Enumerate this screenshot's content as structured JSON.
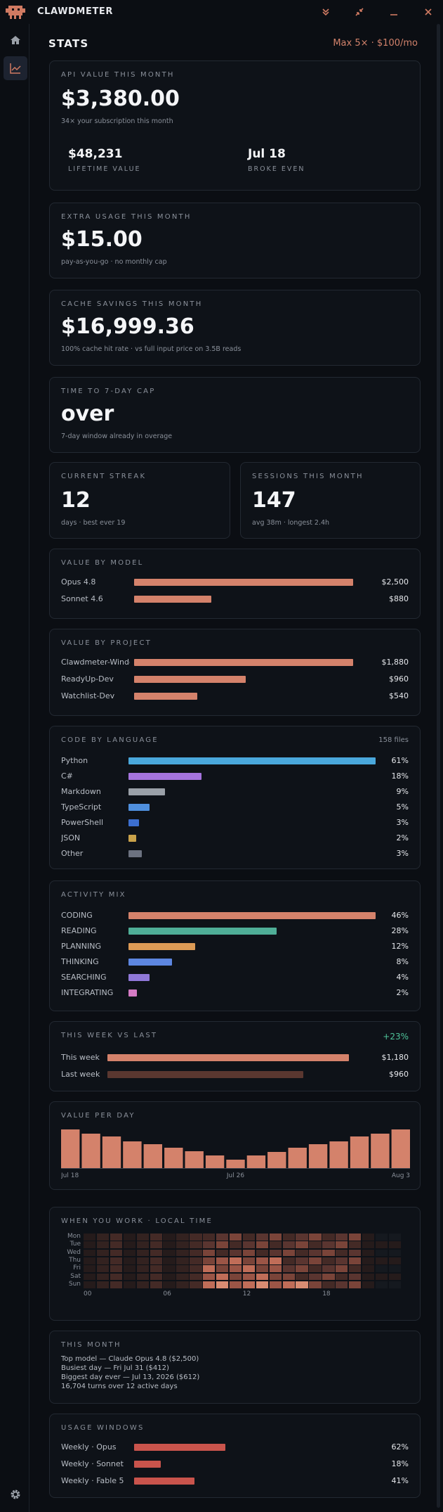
{
  "app": {
    "title": "CLAWDMETER"
  },
  "header": {
    "title": "STATS",
    "plan": "Max 5× · $100/mo"
  },
  "api_value": {
    "label": "API VALUE THIS MONTH",
    "value": "$3,380.00",
    "sub": "34× your subscription this month",
    "lifetime": {
      "value": "$48,231",
      "label": "LIFETIME VALUE"
    },
    "broke_even": {
      "value": "Jul 18",
      "label": "BROKE EVEN"
    }
  },
  "extra_usage": {
    "label": "EXTRA USAGE THIS MONTH",
    "value": "$15.00",
    "sub": "pay-as-you-go · no monthly cap"
  },
  "cache": {
    "label": "CACHE SAVINGS THIS MONTH",
    "value": "$16,999.36",
    "sub": "100% cache hit rate · vs full input price on 3.5B reads"
  },
  "cap": {
    "label": "TIME TO 7-DAY CAP",
    "value": "over",
    "sub": "7-day window already in overage"
  },
  "streak": {
    "label": "CURRENT STREAK",
    "value": "12",
    "sub": "days · best ever 19"
  },
  "sessions": {
    "label": "SESSIONS THIS MONTH",
    "value": "147",
    "sub": "avg 38m · longest 2.4h"
  },
  "by_model": {
    "label": "VALUE BY MODEL",
    "items": [
      {
        "name": "Opus 4.8",
        "value": "$2,500",
        "frac": 1.0
      },
      {
        "name": "Sonnet 4.6",
        "value": "$880",
        "frac": 0.352
      }
    ]
  },
  "by_project": {
    "label": "VALUE BY PROJECT",
    "items": [
      {
        "name": "Clawdmeter-Windows",
        "value": "$1,880",
        "frac": 1.0
      },
      {
        "name": "ReadyUp-Dev",
        "value": "$960",
        "frac": 0.51
      },
      {
        "name": "Watchlist-Dev",
        "value": "$540",
        "frac": 0.287
      }
    ]
  },
  "languages": {
    "label": "CODE BY LANGUAGE",
    "files": "158 files",
    "items": [
      {
        "name": "Python",
        "pct": "61%",
        "frac": 1.0,
        "color": "#4aa8dc"
      },
      {
        "name": "C#",
        "pct": "18%",
        "frac": 0.295,
        "color": "#a574dd"
      },
      {
        "name": "Markdown",
        "pct": "9%",
        "frac": 0.148,
        "color": "#9aa0a8"
      },
      {
        "name": "TypeScript",
        "pct": "5%",
        "frac": 0.085,
        "color": "#4f8fdd"
      },
      {
        "name": "PowerShell",
        "pct": "3%",
        "frac": 0.042,
        "color": "#3c6fd0"
      },
      {
        "name": "JSON",
        "pct": "2%",
        "frac": 0.03,
        "color": "#c9a24a"
      },
      {
        "name": "Other",
        "pct": "3%",
        "frac": 0.055,
        "color": "#6c7280"
      }
    ]
  },
  "activity": {
    "label": "ACTIVITY MIX",
    "items": [
      {
        "name": "CODING",
        "pct": "46%",
        "frac": 1.0,
        "color": "#d4826b"
      },
      {
        "name": "READING",
        "pct": "28%",
        "frac": 0.6,
        "color": "#4fae97"
      },
      {
        "name": "PLANNING",
        "pct": "12%",
        "frac": 0.27,
        "color": "#dc9a55"
      },
      {
        "name": "THINKING",
        "pct": "8%",
        "frac": 0.175,
        "color": "#5d86e0"
      },
      {
        "name": "SEARCHING",
        "pct": "4%",
        "frac": 0.085,
        "color": "#8f78d8"
      },
      {
        "name": "INTEGRATING",
        "pct": "2%",
        "frac": 0.035,
        "color": "#d57bc4"
      }
    ]
  },
  "week": {
    "label": "THIS WEEK VS LAST",
    "delta": "+23%",
    "items": [
      {
        "name": "This week",
        "value": "$1,180",
        "frac": 1.0,
        "color": "#d4826b"
      },
      {
        "name": "Last week",
        "value": "$960",
        "frac": 0.81,
        "color": "#5a3730"
      }
    ]
  },
  "per_day": {
    "label": "VALUE PER DAY",
    "x_labels": [
      "Jul 18",
      "Jul 26",
      "Aug 3"
    ],
    "values": [
      0.95,
      0.85,
      0.77,
      0.66,
      0.58,
      0.5,
      0.41,
      0.31,
      0.21,
      0.31,
      0.39,
      0.5,
      0.58,
      0.66,
      0.77,
      0.85,
      0.95
    ]
  },
  "when": {
    "label": "WHEN YOU WORK · LOCAL TIME",
    "days": [
      "Mon",
      "Tue",
      "Wed",
      "Thu",
      "Fri",
      "Sat",
      "Sun"
    ],
    "hours": [
      "00",
      "06",
      "12",
      "18"
    ]
  },
  "this_month": {
    "label": "THIS MONTH",
    "lines": [
      "Top model — Claude Opus 4.8 ($2,500)",
      "Busiest day — Fri Jul 31 ($412)",
      "Biggest day ever — Jul 13, 2026 ($612)",
      "16,704 turns over 12 active days"
    ]
  },
  "usage": {
    "label": "USAGE WINDOWS",
    "items": [
      {
        "name": "Weekly · Opus",
        "pct": "62%",
        "frac": 0.62,
        "color": "#c9544c"
      },
      {
        "name": "Weekly · Sonnet",
        "pct": "18%",
        "frac": 0.18,
        "color": "#c9544c"
      },
      {
        "name": "Weekly · Fable 5",
        "pct": "41%",
        "frac": 0.41,
        "color": "#c9544c"
      }
    ]
  }
}
